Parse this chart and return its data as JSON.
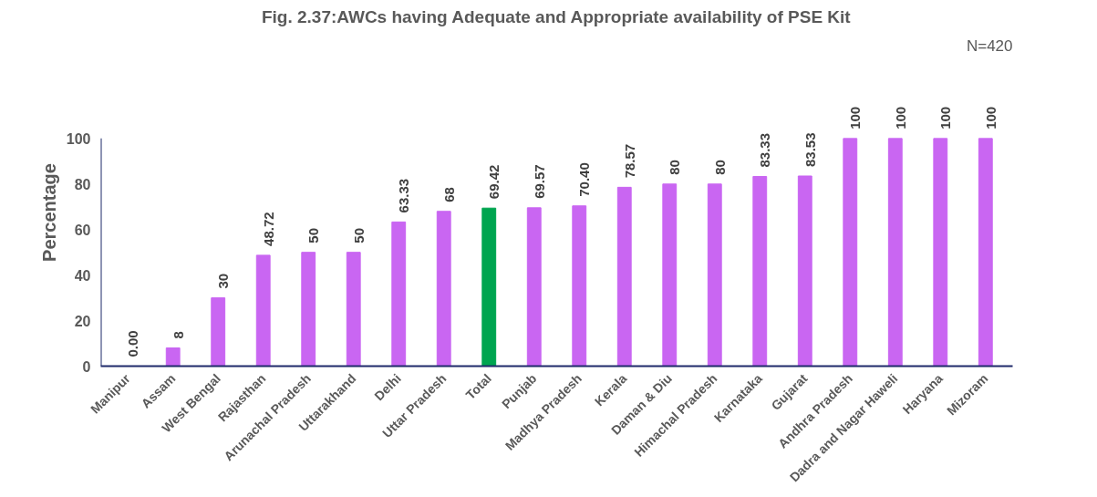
{
  "chart_data": {
    "type": "bar",
    "title": "Fig. 2.37:AWCs having Adequate and Appropriate availability of PSE Kit",
    "ylabel": "Percentage",
    "categories": [
      "Manipur",
      "Assam",
      "West Bengal",
      "Rajasthan",
      "Arunachal Pradesh",
      "Uttarakhand",
      "Delhi",
      "Uttar Pradesh",
      "Total",
      "Punjab",
      "Madhya Pradesh",
      "Kerala",
      "Daman & Diu",
      "Himachal Pradesh",
      "Karnataka",
      "Gujarat",
      "Andhra Pradesh",
      "Dadra and Nagar Haweli",
      "Haryana",
      "Mizoram"
    ],
    "values": [
      0,
      8,
      30,
      48.72,
      50,
      50,
      63.33,
      68,
      69.42,
      69.57,
      70.4,
      78.57,
      80,
      80,
      83.33,
      83.53,
      100,
      100,
      100,
      100
    ],
    "value_labels": [
      "0.00",
      "8",
      "30",
      "48.72",
      "50",
      "50",
      "63.33",
      "68",
      "69.42",
      "69.57",
      "70.40",
      "78.57",
      "80",
      "80",
      "83.33",
      "83.53",
      "100",
      "100",
      "100",
      "100"
    ],
    "colors": [
      "#c966f2",
      "#c966f2",
      "#c966f2",
      "#c966f2",
      "#c966f2",
      "#c966f2",
      "#c966f2",
      "#c966f2",
      "#00a550",
      "#c966f2",
      "#c966f2",
      "#c966f2",
      "#c966f2",
      "#c966f2",
      "#c966f2",
      "#c966f2",
      "#c966f2",
      "#c966f2",
      "#c966f2",
      "#c966f2"
    ],
    "ylim": [
      0,
      100
    ],
    "yticks": [
      0,
      20,
      40,
      60,
      80,
      100
    ],
    "grid": false,
    "annotations": [
      "N=420"
    ]
  }
}
